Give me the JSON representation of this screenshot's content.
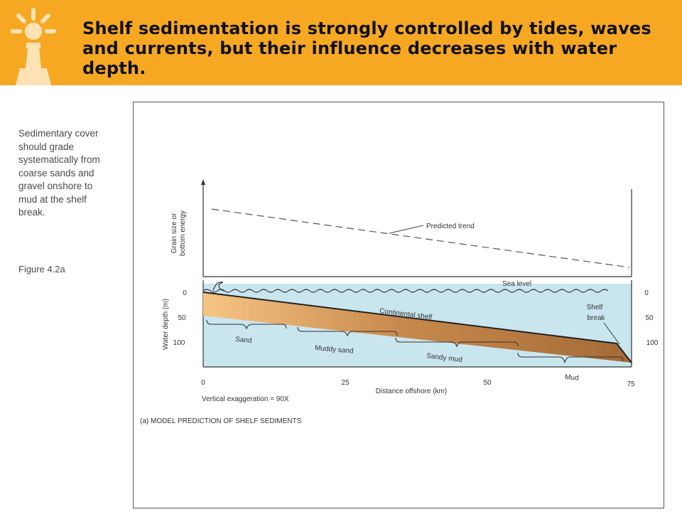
{
  "header": {
    "title": "Shelf sedimentation is strongly controlled by tides, waves and currents, but their influence decreases with water depth.",
    "background": "#f7a823"
  },
  "sidebar": {
    "caption": "Sedimentary cover\nshould grade\nsystematically from\ncoarse sands and\ngravel onshore to\nmud at the shelf\nbreak.",
    "figure_ref": "Figure 4.2a"
  },
  "figure": {
    "upper_axis_label_line1": "Grain size or",
    "upper_axis_label_line2": "bottom energy",
    "trend_label": "Predicted trend",
    "sea_level_label": "Sea level",
    "continental_shelf_label": "Continental shelf",
    "shelf_break_label_line1": "Shelf",
    "shelf_break_label_line2": "break",
    "depth_axis_label": "Water depth (m)",
    "depth_ticks": [
      "0",
      "50",
      "100"
    ],
    "distance_ticks": [
      "0",
      "25",
      "50",
      "75"
    ],
    "x_axis_label": "Distance offshore (km)",
    "exaggeration": "Vertical exaggeration = 90X",
    "sediments": [
      "Sand",
      "Muddy sand",
      "Sandy mud",
      "Mud"
    ],
    "subcaption": "(a) MODEL PREDICTION OF SHELF SEDIMENTS",
    "colors": {
      "water": "#c9e6ef",
      "sediment_light": "#f6c585",
      "sediment_dark": "#a46a36"
    }
  }
}
